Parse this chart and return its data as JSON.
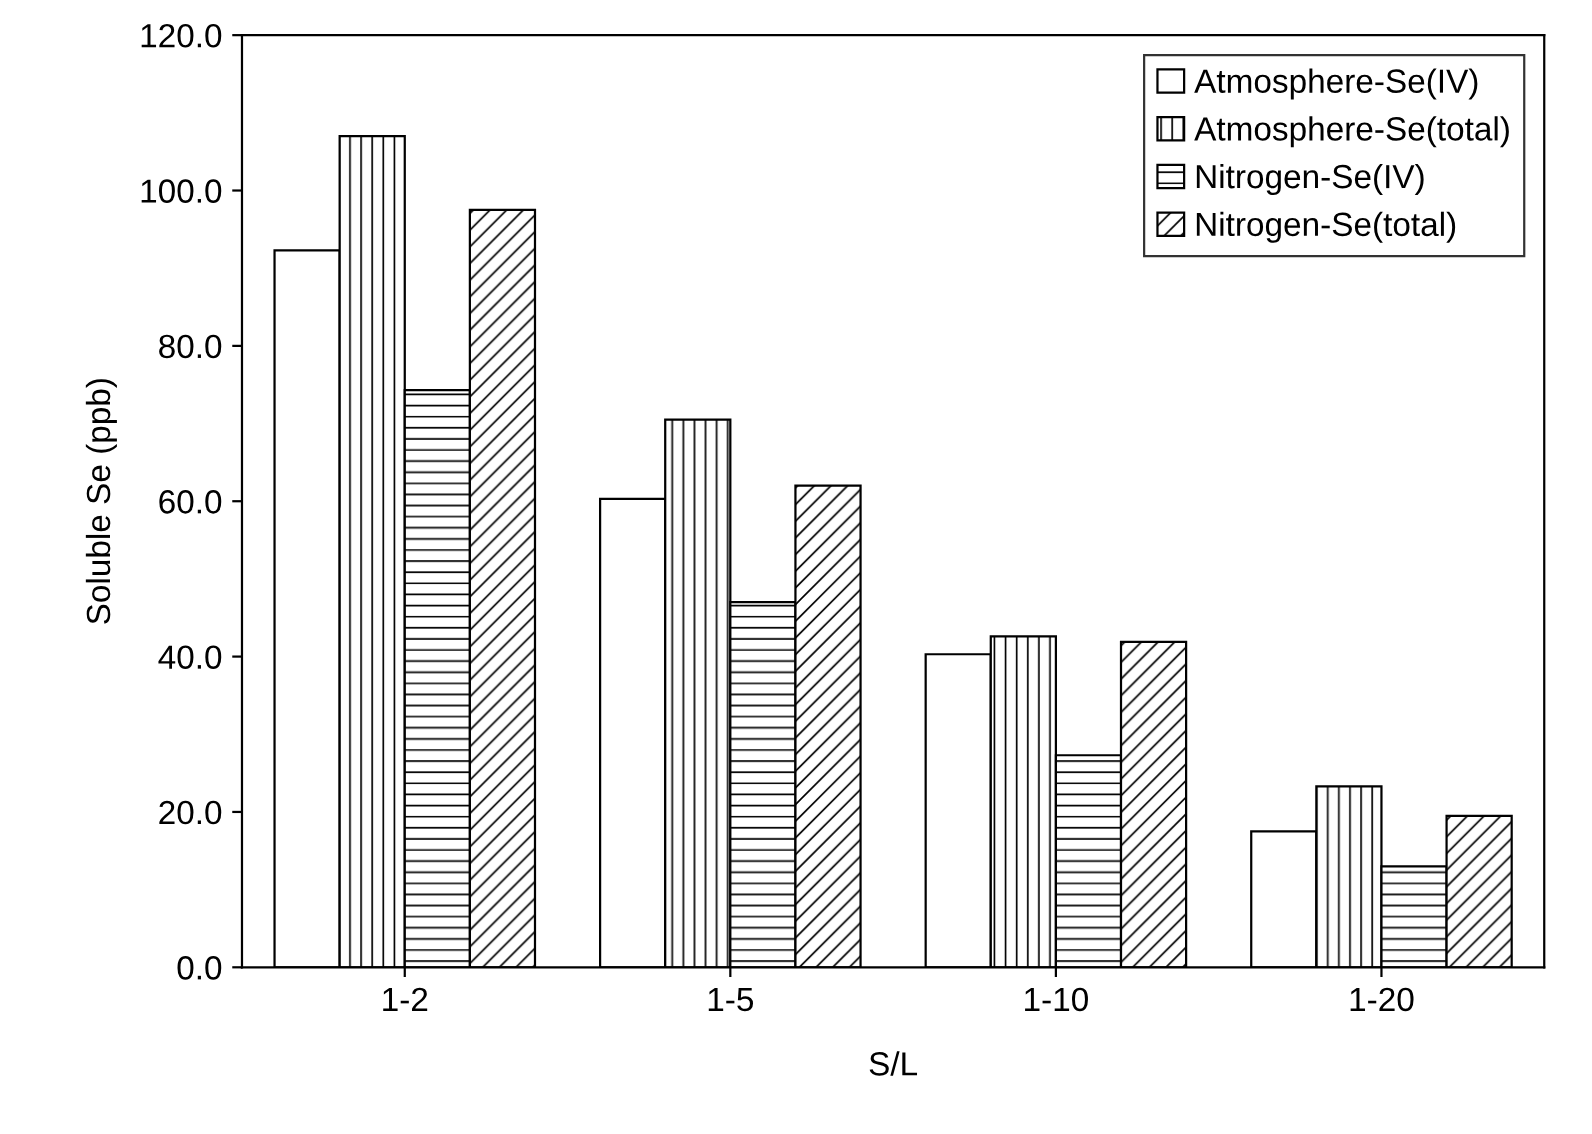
{
  "chart_data": {
    "type": "bar",
    "xlabel": "S/L",
    "ylabel": "Soluble Se (ppb)",
    "categories": [
      "1-2",
      "1-5",
      "1-10",
      "1-20"
    ],
    "series": [
      {
        "name": "Atmosphere-Se(IV)",
        "color": "#ffffff",
        "values": [
          92.3,
          60.3,
          40.3,
          17.5
        ]
      },
      {
        "name": "Atmosphere-Se(total)",
        "color": "#ffffff",
        "values": [
          107.0,
          70.5,
          42.6,
          23.3
        ]
      },
      {
        "name": "Nitrogen-Se(IV)",
        "color": "#ffffff",
        "values": [
          74.3,
          47.0,
          27.3,
          13.0
        ]
      },
      {
        "name": "Nitrogen-Se(total)",
        "color": "#ffffff",
        "values": [
          97.5,
          62.0,
          41.9,
          19.5
        ]
      }
    ],
    "ylim": [
      0,
      120
    ],
    "yticks": [
      {
        "value": 0,
        "label": "0.0"
      },
      {
        "value": 20,
        "label": "20.0"
      },
      {
        "value": 40,
        "label": "40.0"
      },
      {
        "value": 60,
        "label": "60.0"
      },
      {
        "value": 80,
        "label": "80.0"
      },
      {
        "value": 100,
        "label": "100.0"
      },
      {
        "value": 120,
        "label": "120.0"
      }
    ],
    "grid": false,
    "legend": "top right"
  }
}
